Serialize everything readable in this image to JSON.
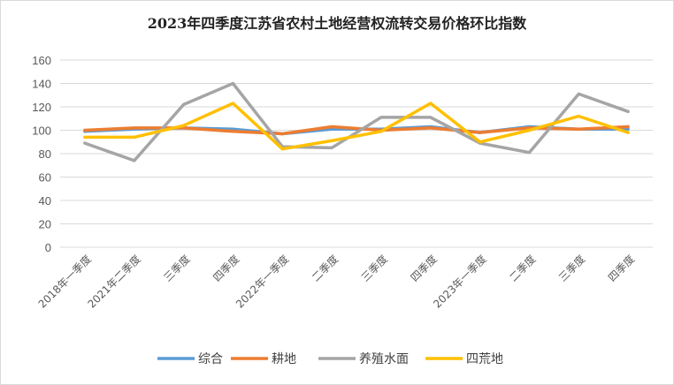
{
  "chart_data": {
    "type": "line",
    "title": "2023年四季度江苏省农村土地经营权流转交易价格环比指数",
    "categories": [
      "2018年一季度",
      "2021年二季度",
      "三季度",
      "四季度",
      "2022年一季度",
      "二季度",
      "三季度",
      "四季度",
      "2023年一季度",
      "二季度",
      "三季度",
      "四季度"
    ],
    "ylim": [
      0,
      160
    ],
    "yticks": [
      0,
      20,
      40,
      60,
      80,
      100,
      120,
      140,
      160
    ],
    "grid": true,
    "legend_position": "bottom",
    "series": [
      {
        "name": "综合",
        "color": "#5b9bd5",
        "values": [
          99,
          101,
          102,
          101,
          97,
          101,
          101,
          103,
          98,
          103,
          101,
          101
        ]
      },
      {
        "name": "耕地",
        "color": "#ed7d31",
        "values": [
          100,
          102,
          102,
          99,
          97,
          103,
          100,
          102,
          98,
          102,
          101,
          103
        ]
      },
      {
        "name": "养殖水面",
        "color": "#a5a5a5",
        "values": [
          89,
          74,
          122,
          140,
          86,
          85,
          111,
          111,
          89,
          81,
          131,
          116
        ]
      },
      {
        "name": "四荒地",
        "color": "#ffc000",
        "values": [
          94,
          94,
          104,
          123,
          84,
          91,
          99,
          123,
          90,
          100,
          112,
          98
        ]
      }
    ]
  }
}
